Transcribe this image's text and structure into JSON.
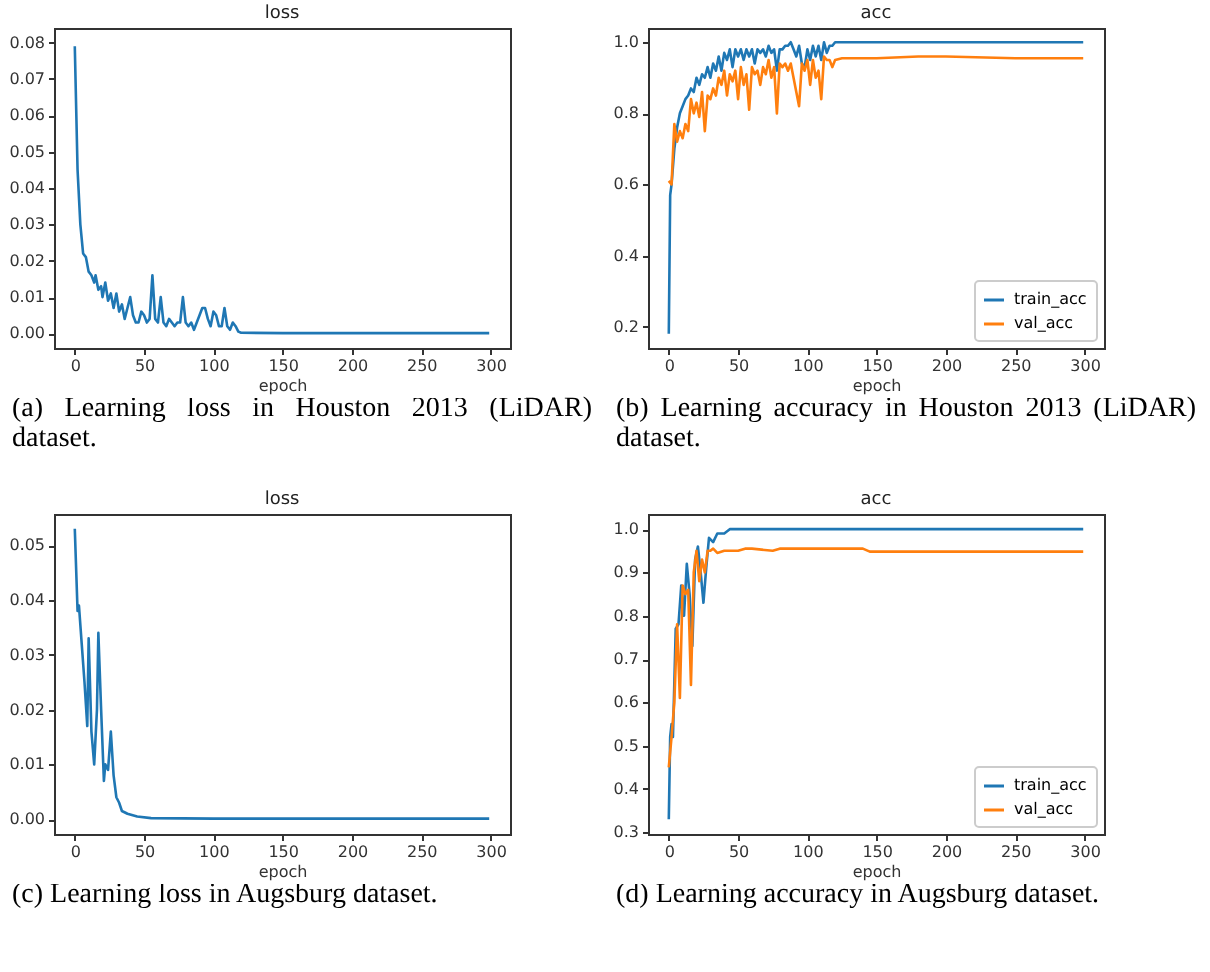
{
  "chart_data": [
    {
      "type": "line",
      "title": "loss",
      "xlabel": "epoch",
      "annotations": [
        "(a) Learning loss in Houston 2013 (LiDAR) dataset."
      ],
      "xlim": [
        -15,
        314
      ],
      "xticks": [
        0,
        50,
        100,
        150,
        200,
        250,
        300
      ],
      "ylim": [
        -0.004,
        0.084
      ],
      "yticks": [
        {
          "value": 0,
          "label": "0.00"
        },
        {
          "value": 0.01,
          "label": "0.01"
        },
        {
          "value": 0.02,
          "label": "0.02"
        },
        {
          "value": 0.03,
          "label": "0.03"
        },
        {
          "value": 0.04,
          "label": "0.04"
        },
        {
          "value": 0.05,
          "label": "0.05"
        },
        {
          "value": 0.06,
          "label": "0.06"
        },
        {
          "value": 0.07,
          "label": "0.07"
        },
        {
          "value": 0.08,
          "label": "0.08"
        }
      ],
      "grid": false,
      "series": [
        {
          "color": "#1f77b4",
          "x": [
            0,
            2,
            4,
            6,
            8,
            10,
            12,
            14,
            15,
            17,
            19,
            20,
            22,
            24,
            26,
            28,
            30,
            32,
            34,
            36,
            38,
            40,
            42,
            44,
            46,
            48,
            50,
            52,
            54,
            56,
            58,
            60,
            62,
            64,
            66,
            68,
            70,
            72,
            74,
            76,
            78,
            80,
            82,
            84,
            86,
            88,
            90,
            92,
            94,
            96,
            98,
            100,
            102,
            104,
            106,
            108,
            110,
            112,
            114,
            116,
            118,
            120,
            150,
            200,
            299
          ],
          "values": [
            0.079,
            0.045,
            0.03,
            0.022,
            0.021,
            0.017,
            0.016,
            0.014,
            0.016,
            0.012,
            0.013,
            0.01,
            0.014,
            0.009,
            0.011,
            0.007,
            0.011,
            0.006,
            0.008,
            0.004,
            0.007,
            0.01,
            0.005,
            0.003,
            0.003,
            0.006,
            0.005,
            0.003,
            0.004,
            0.016,
            0.004,
            0.003,
            0.01,
            0.003,
            0.002,
            0.004,
            0.003,
            0.002,
            0.003,
            0.003,
            0.01,
            0.003,
            0.002,
            0.003,
            0.001,
            0.003,
            0.005,
            0.007,
            0.007,
            0.004,
            0.002,
            0.006,
            0.005,
            0.002,
            0.002,
            0.007,
            0.002,
            0.001,
            0.003,
            0.002,
            0.0005,
            0.0002,
            0.0001,
            0.0001,
            0.0001
          ]
        }
      ]
    },
    {
      "type": "line",
      "title": "acc",
      "xlabel": "epoch",
      "annotations": [
        "(b) Learning accuracy in Houston 2013 (LiDAR) dataset."
      ],
      "xlim": [
        -15,
        314
      ],
      "xticks": [
        0,
        50,
        100,
        150,
        200,
        250,
        300
      ],
      "ylim": [
        0.14,
        1.04
      ],
      "yticks": [
        0.2,
        0.4,
        0.6,
        0.8,
        {
          "value": 1,
          "label": "1.0"
        }
      ],
      "grid": false,
      "legend": "bottom right",
      "series": [
        {
          "name": "train_acc",
          "color": "#1f77b4",
          "x": [
            0,
            1,
            2,
            4,
            6,
            8,
            10,
            12,
            14,
            16,
            18,
            20,
            22,
            24,
            26,
            28,
            30,
            32,
            34,
            36,
            38,
            40,
            42,
            44,
            46,
            48,
            50,
            52,
            54,
            56,
            58,
            60,
            62,
            64,
            66,
            68,
            70,
            72,
            74,
            76,
            78,
            80,
            82,
            84,
            86,
            88,
            90,
            92,
            94,
            96,
            98,
            100,
            102,
            104,
            106,
            108,
            110,
            112,
            114,
            116,
            118,
            120,
            299
          ],
          "values": [
            0.18,
            0.57,
            0.6,
            0.7,
            0.76,
            0.8,
            0.82,
            0.84,
            0.85,
            0.87,
            0.86,
            0.9,
            0.88,
            0.91,
            0.9,
            0.93,
            0.9,
            0.94,
            0.92,
            0.96,
            0.92,
            0.97,
            0.95,
            0.98,
            0.93,
            0.98,
            0.96,
            0.98,
            0.95,
            0.98,
            0.96,
            0.98,
            0.94,
            0.98,
            0.97,
            0.98,
            0.96,
            0.99,
            0.97,
            0.98,
            0.92,
            0.98,
            0.98,
            0.99,
            0.99,
            1.0,
            0.98,
            0.96,
            0.99,
            0.94,
            0.93,
            0.98,
            0.95,
            0.99,
            0.96,
            0.99,
            0.95,
            1.0,
            0.97,
            0.99,
            0.99,
            1.0,
            1.0
          ]
        },
        {
          "name": "val_acc",
          "color": "#ff7f0e",
          "x": [
            0,
            2,
            4,
            6,
            8,
            10,
            12,
            14,
            16,
            18,
            20,
            22,
            24,
            26,
            28,
            30,
            32,
            34,
            36,
            38,
            40,
            42,
            44,
            46,
            48,
            50,
            52,
            54,
            56,
            58,
            60,
            62,
            64,
            66,
            68,
            70,
            72,
            74,
            76,
            78,
            80,
            82,
            84,
            86,
            88,
            90,
            92,
            94,
            96,
            98,
            100,
            102,
            104,
            106,
            108,
            110,
            112,
            114,
            116,
            118,
            120,
            125,
            150,
            180,
            200,
            250,
            299
          ],
          "values": [
            0.61,
            0.6,
            0.77,
            0.72,
            0.75,
            0.73,
            0.77,
            0.75,
            0.84,
            0.8,
            0.83,
            0.79,
            0.86,
            0.75,
            0.85,
            0.84,
            0.87,
            0.85,
            0.9,
            0.88,
            0.92,
            0.85,
            0.91,
            0.89,
            0.92,
            0.84,
            0.93,
            0.88,
            0.91,
            0.81,
            0.93,
            0.91,
            0.92,
            0.88,
            0.93,
            0.91,
            0.95,
            0.9,
            0.93,
            0.8,
            0.94,
            0.93,
            0.94,
            0.92,
            0.94,
            0.9,
            0.86,
            0.82,
            0.94,
            0.92,
            0.95,
            0.88,
            0.95,
            0.9,
            0.92,
            0.84,
            0.96,
            0.95,
            0.95,
            0.93,
            0.95,
            0.955,
            0.955,
            0.96,
            0.96,
            0.955,
            0.955
          ]
        }
      ]
    },
    {
      "type": "line",
      "title": "loss",
      "xlabel": "epoch",
      "annotations": [
        "(c) Learning loss in Augsburg dataset."
      ],
      "xlim": [
        -15,
        314
      ],
      "xticks": [
        0,
        50,
        100,
        150,
        200,
        250,
        300
      ],
      "ylim": [
        -0.0027,
        0.0557
      ],
      "yticks": [
        {
          "value": 0,
          "label": "0.00"
        },
        {
          "value": 0.01,
          "label": "0.01"
        },
        {
          "value": 0.02,
          "label": "0.02"
        },
        {
          "value": 0.03,
          "label": "0.03"
        },
        {
          "value": 0.04,
          "label": "0.04"
        },
        {
          "value": 0.05,
          "label": "0.05"
        }
      ],
      "grid": false,
      "series": [
        {
          "color": "#1f77b4",
          "x": [
            0,
            2,
            3,
            5,
            7,
            9,
            10,
            12,
            14,
            16,
            17,
            19,
            21,
            22,
            24,
            26,
            28,
            30,
            32,
            34,
            38,
            45,
            55,
            100,
            299
          ],
          "values": [
            0.053,
            0.038,
            0.039,
            0.032,
            0.025,
            0.017,
            0.033,
            0.016,
            0.01,
            0.02,
            0.034,
            0.02,
            0.007,
            0.01,
            0.009,
            0.016,
            0.008,
            0.004,
            0.003,
            0.0015,
            0.001,
            0.0005,
            0.0002,
            0.0001,
            0.0001
          ]
        }
      ]
    },
    {
      "type": "line",
      "title": "acc",
      "xlabel": "epoch",
      "annotations": [
        "(d) Learning accuracy in Augsburg dataset."
      ],
      "xlim": [
        -15,
        314
      ],
      "xticks": [
        0,
        50,
        100,
        150,
        200,
        250,
        300
      ],
      "ylim": [
        0.296,
        1.035
      ],
      "yticks": [
        0.3,
        0.4,
        0.5,
        0.6,
        0.7,
        0.8,
        0.9,
        {
          "value": 1,
          "label": "1.0"
        }
      ],
      "grid": false,
      "legend": "bottom right",
      "series": [
        {
          "name": "train_acc",
          "color": "#1f77b4",
          "x": [
            0,
            1,
            2,
            3,
            5,
            7,
            9,
            11,
            13,
            15,
            17,
            19,
            21,
            23,
            25,
            27,
            29,
            32,
            35,
            40,
            44,
            299
          ],
          "values": [
            0.33,
            0.52,
            0.55,
            0.52,
            0.77,
            0.78,
            0.87,
            0.8,
            0.92,
            0.85,
            0.73,
            0.93,
            0.96,
            0.9,
            0.83,
            0.91,
            0.98,
            0.97,
            0.99,
            0.99,
            1.0,
            1.0
          ]
        },
        {
          "name": "val_acc",
          "color": "#ff7f0e",
          "x": [
            0,
            2,
            4,
            6,
            8,
            10,
            12,
            14,
            16,
            18,
            20,
            22,
            24,
            26,
            28,
            30,
            32,
            35,
            40,
            50,
            55,
            60,
            75,
            80,
            140,
            145,
            299
          ],
          "values": [
            0.45,
            0.52,
            0.6,
            0.78,
            0.61,
            0.87,
            0.85,
            0.86,
            0.64,
            0.9,
            0.95,
            0.88,
            0.93,
            0.9,
            0.95,
            0.95,
            0.955,
            0.945,
            0.95,
            0.95,
            0.955,
            0.955,
            0.95,
            0.955,
            0.955,
            0.948,
            0.948
          ]
        }
      ]
    }
  ]
}
